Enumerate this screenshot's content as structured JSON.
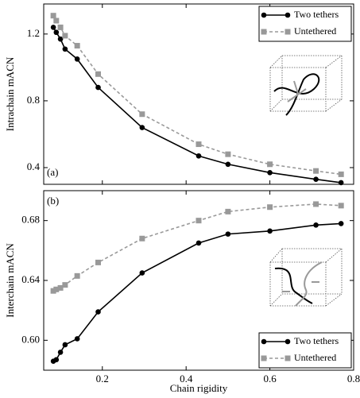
{
  "chart_data": [
    {
      "type": "line",
      "ylabel": "Intrachain mACN",
      "panel_label": "(a)",
      "x": [
        0.083,
        0.09,
        0.1,
        0.111,
        0.14,
        0.19,
        0.295,
        0.43,
        0.5,
        0.6,
        0.71,
        0.77
      ],
      "series": [
        {
          "name": "Two tethers",
          "color": "#000000",
          "dashed": false,
          "marker": "circle",
          "values": [
            1.24,
            1.21,
            1.17,
            1.11,
            1.05,
            0.88,
            0.64,
            0.47,
            0.42,
            0.37,
            0.33,
            0.31
          ]
        },
        {
          "name": "Untethered",
          "color": "#999999",
          "dashed": true,
          "marker": "square",
          "values": [
            1.31,
            1.28,
            1.24,
            1.19,
            1.13,
            0.96,
            0.72,
            0.54,
            0.48,
            0.42,
            0.38,
            0.36
          ]
        }
      ],
      "xlim": [
        0.06,
        0.8
      ],
      "xticks": [
        0.2,
        0.4,
        0.6,
        0.8
      ],
      "ylim": [
        0.3,
        1.38
      ],
      "yticks": [
        0.4,
        0.8,
        1.2
      ],
      "legend": "upper right"
    },
    {
      "type": "line",
      "ylabel": "Interchain mACN",
      "panel_label": "(b)",
      "xlabel": "Chain rigidity",
      "x": [
        0.083,
        0.09,
        0.1,
        0.111,
        0.14,
        0.19,
        0.295,
        0.43,
        0.5,
        0.6,
        0.71,
        0.77
      ],
      "series": [
        {
          "name": "Two tethers",
          "color": "#000000",
          "dashed": false,
          "marker": "circle",
          "values": [
            0.586,
            0.587,
            0.592,
            0.597,
            0.601,
            0.619,
            0.645,
            0.665,
            0.671,
            0.673,
            0.677,
            0.678
          ]
        },
        {
          "name": "Untethered",
          "color": "#999999",
          "dashed": true,
          "marker": "square",
          "values": [
            0.633,
            0.634,
            0.635,
            0.637,
            0.643,
            0.652,
            0.668,
            0.68,
            0.686,
            0.689,
            0.691,
            0.69
          ]
        }
      ],
      "xlim": [
        0.06,
        0.8
      ],
      "xticks": [
        0.2,
        0.4,
        0.6,
        0.8
      ],
      "ylim": [
        0.58,
        0.7
      ],
      "yticks": [
        {
          "value": 0.6,
          "label": "0.60"
        },
        0.64,
        0.68
      ],
      "legend": "lower right"
    }
  ]
}
